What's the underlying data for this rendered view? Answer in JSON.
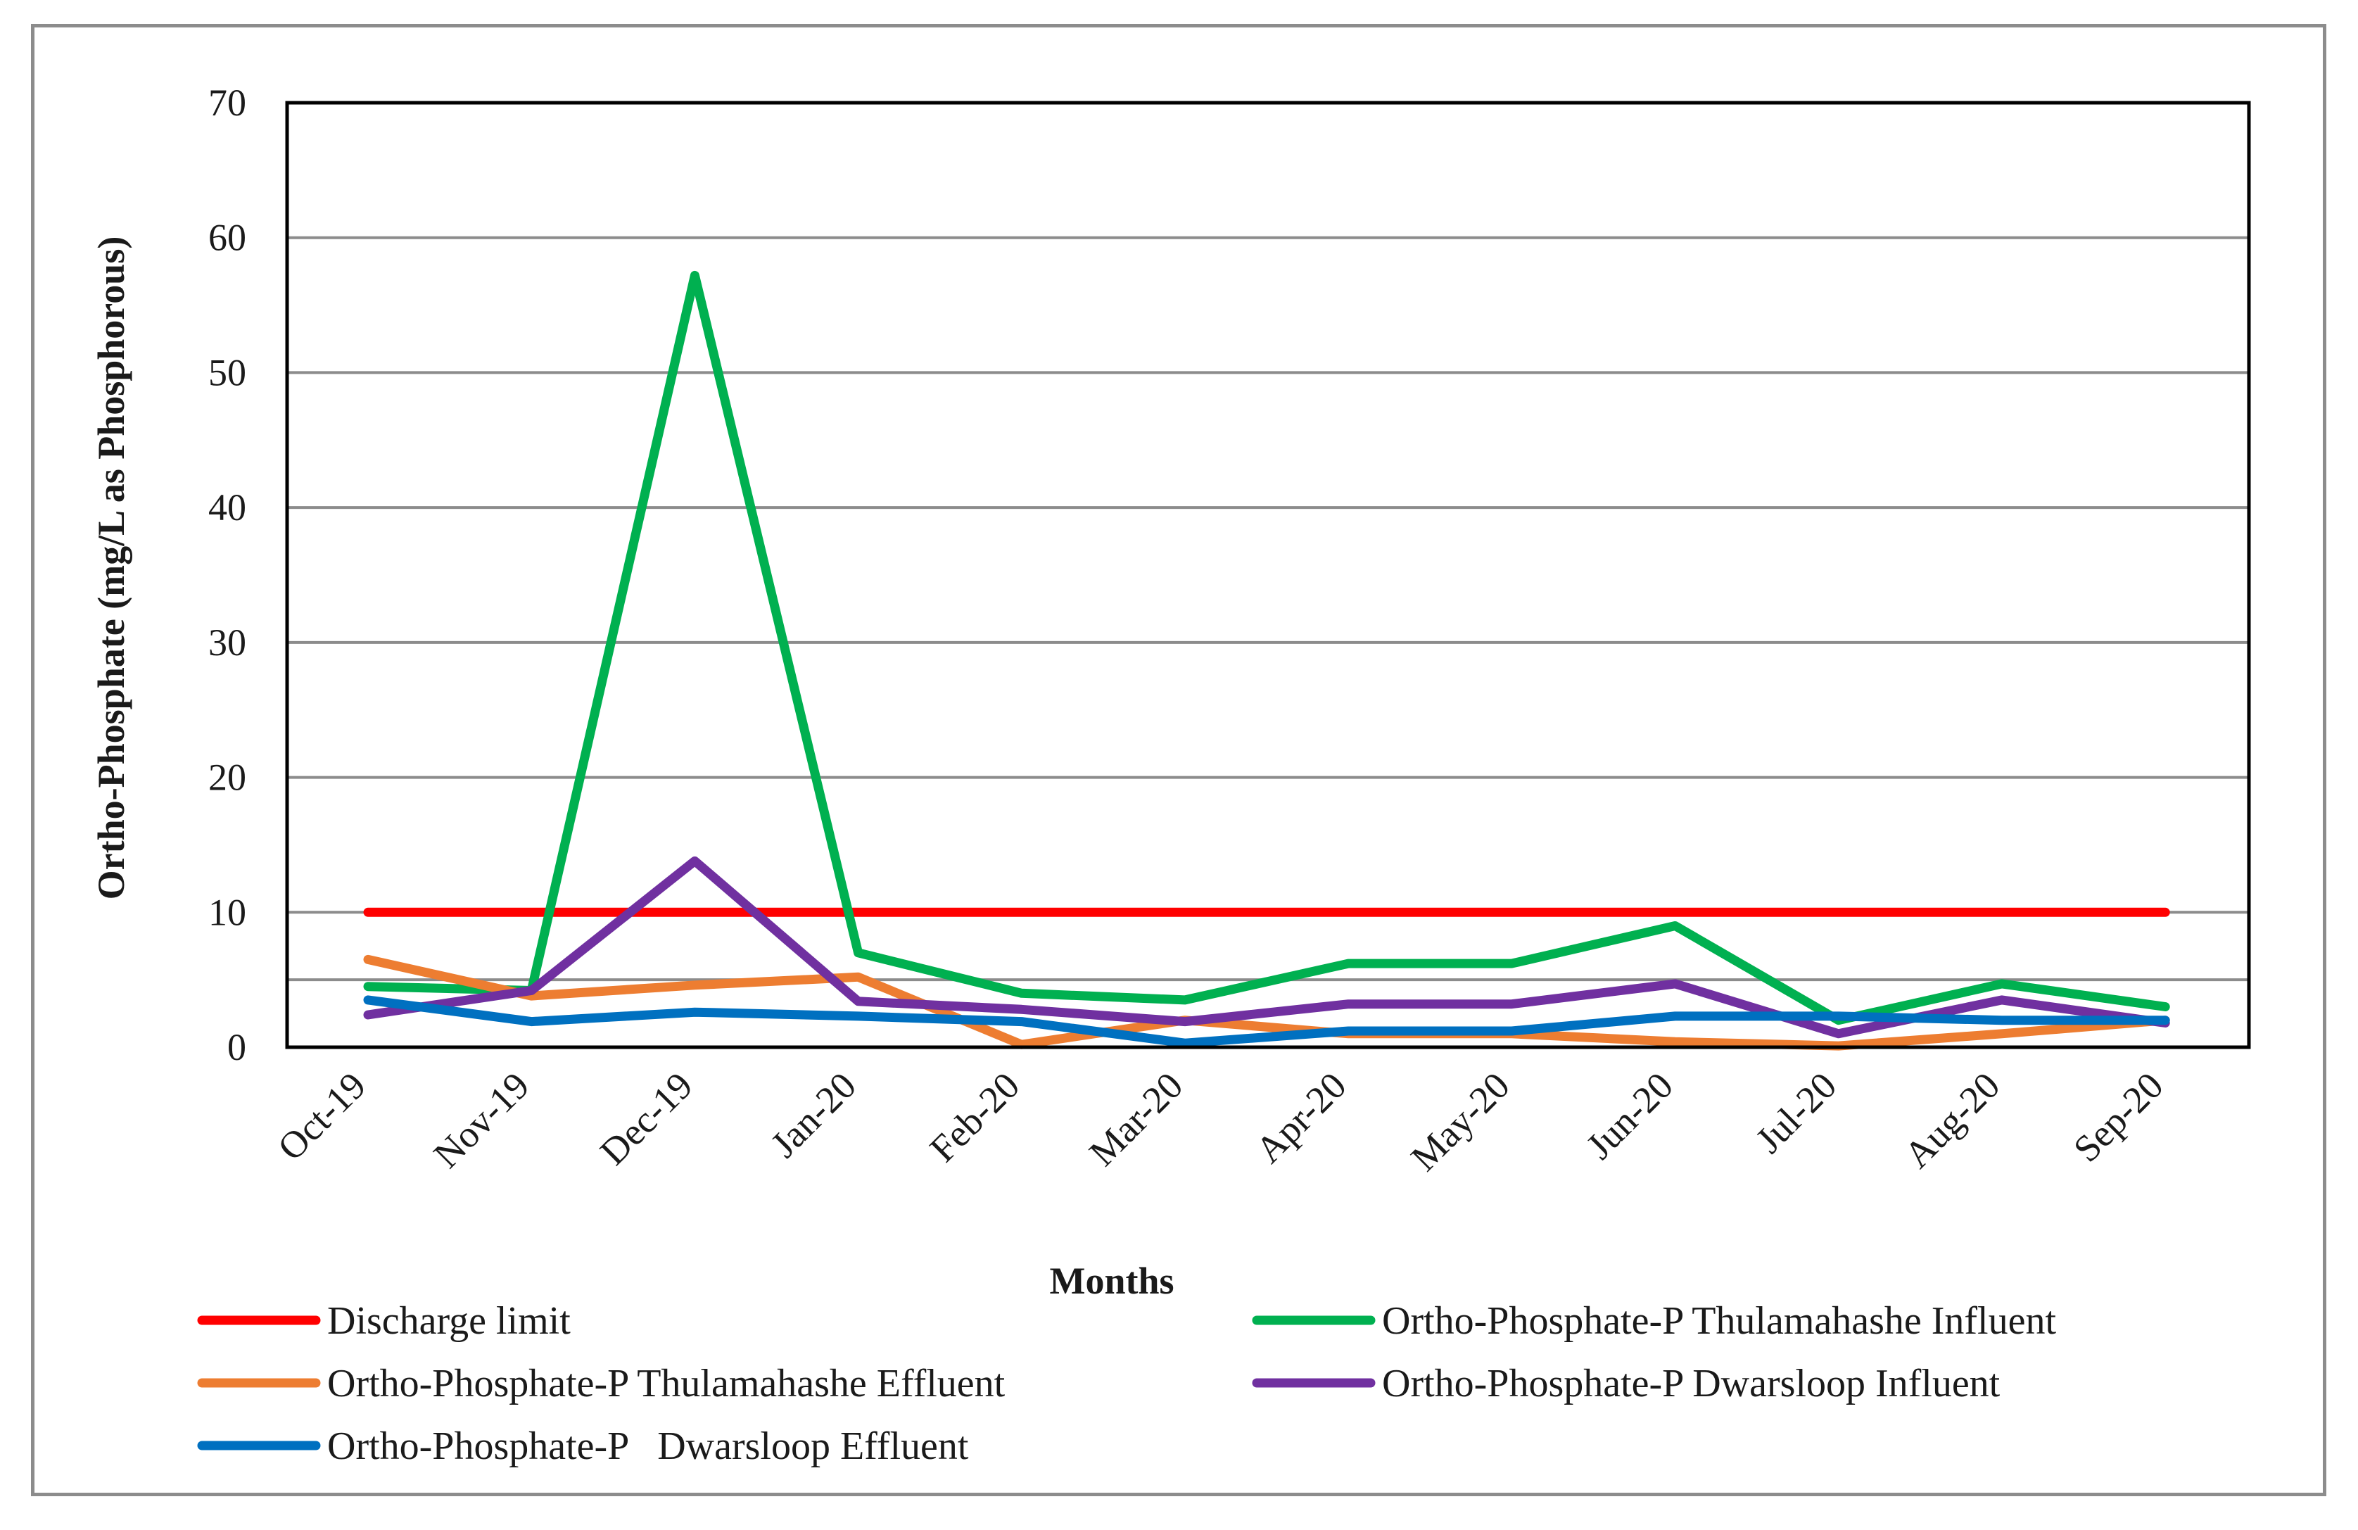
{
  "chart_data": {
    "type": "line",
    "title": "",
    "xlabel": "Months",
    "ylabel": "Ortho-Phosphate (mg/L as Phosphorous)",
    "ylim": [
      0,
      70
    ],
    "yticks": [
      0,
      10,
      20,
      30,
      40,
      50,
      60,
      70
    ],
    "grid": true,
    "legend_position": "bottom",
    "categories": [
      "Oct-19",
      "Nov-19",
      "Dec-19",
      "Jan-20",
      "Feb-20",
      "Mar-20",
      "Apr-20",
      "May-20",
      "Jun-20",
      "Jul-20",
      "Aug-20",
      "Sep-20"
    ],
    "series": [
      {
        "name": "Discharge limit",
        "color": "#ff0000",
        "values": [
          10,
          10,
          10,
          10,
          10,
          10,
          10,
          10,
          10,
          10,
          10,
          10
        ]
      },
      {
        "name": "Ortho-Phosphate-P Thulamahashe Influent",
        "color": "#00b050",
        "values": [
          4.5,
          4.2,
          57.2,
          7.0,
          4.0,
          3.5,
          6.2,
          6.2,
          9.0,
          2.0,
          4.7,
          3.0
        ]
      },
      {
        "name": "Ortho-Phosphate-P Thulamahashe Effluent",
        "color": "#ed7d31",
        "values": [
          6.5,
          3.8,
          4.6,
          5.2,
          0.2,
          2.0,
          1.0,
          1.0,
          0.4,
          0.1,
          1.0,
          2.0
        ]
      },
      {
        "name": "Ortho-Phosphate-P Dwarsloop Influent",
        "color": "#7030a0",
        "values": [
          2.4,
          4.2,
          13.8,
          3.4,
          2.8,
          1.9,
          3.2,
          3.2,
          4.7,
          1.0,
          3.5,
          1.8
        ]
      },
      {
        "name": "Ortho-Phosphate-P   Dwarsloop Effluent",
        "color": "#0070c0",
        "values": [
          3.5,
          1.9,
          2.6,
          2.3,
          1.9,
          0.3,
          1.2,
          1.2,
          2.3,
          2.3,
          2.0,
          2.0
        ]
      }
    ]
  }
}
